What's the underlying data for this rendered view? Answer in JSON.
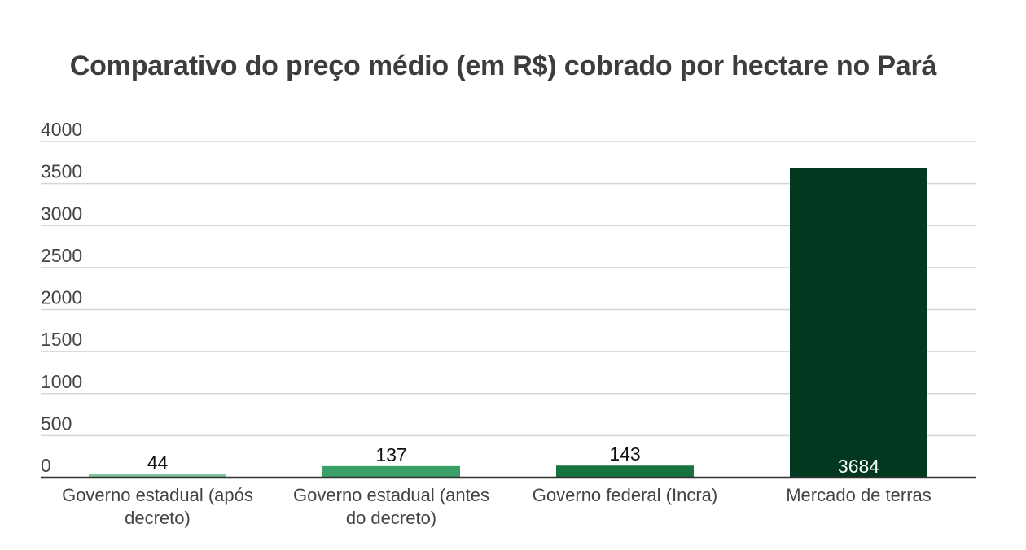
{
  "chart_data": {
    "type": "bar",
    "title": "Comparativo do preço médio (em R$) cobrado por hectare no Pará",
    "xlabel": "",
    "ylabel": "",
    "categories": [
      [
        "Governo estadual (após",
        "decreto)"
      ],
      [
        "Governo estadual (antes",
        "do decreto)"
      ],
      [
        "Governo federal (Incra)"
      ],
      [
        "Mercado de terras"
      ]
    ],
    "values": [
      44,
      137,
      143,
      3684
    ],
    "data_labels": [
      "44",
      "137",
      "143",
      "3684"
    ],
    "colors": [
      "#7fc49b",
      "#3aa068",
      "#167340",
      "#033820"
    ],
    "label_colors": [
      "#111111",
      "#111111",
      "#111111",
      "#ffffff"
    ],
    "ylim": [
      0,
      4000
    ],
    "yticks": [
      0,
      500,
      1000,
      1500,
      2000,
      2500,
      3000,
      3500,
      4000
    ],
    "grid": true,
    "legend": "none"
  }
}
